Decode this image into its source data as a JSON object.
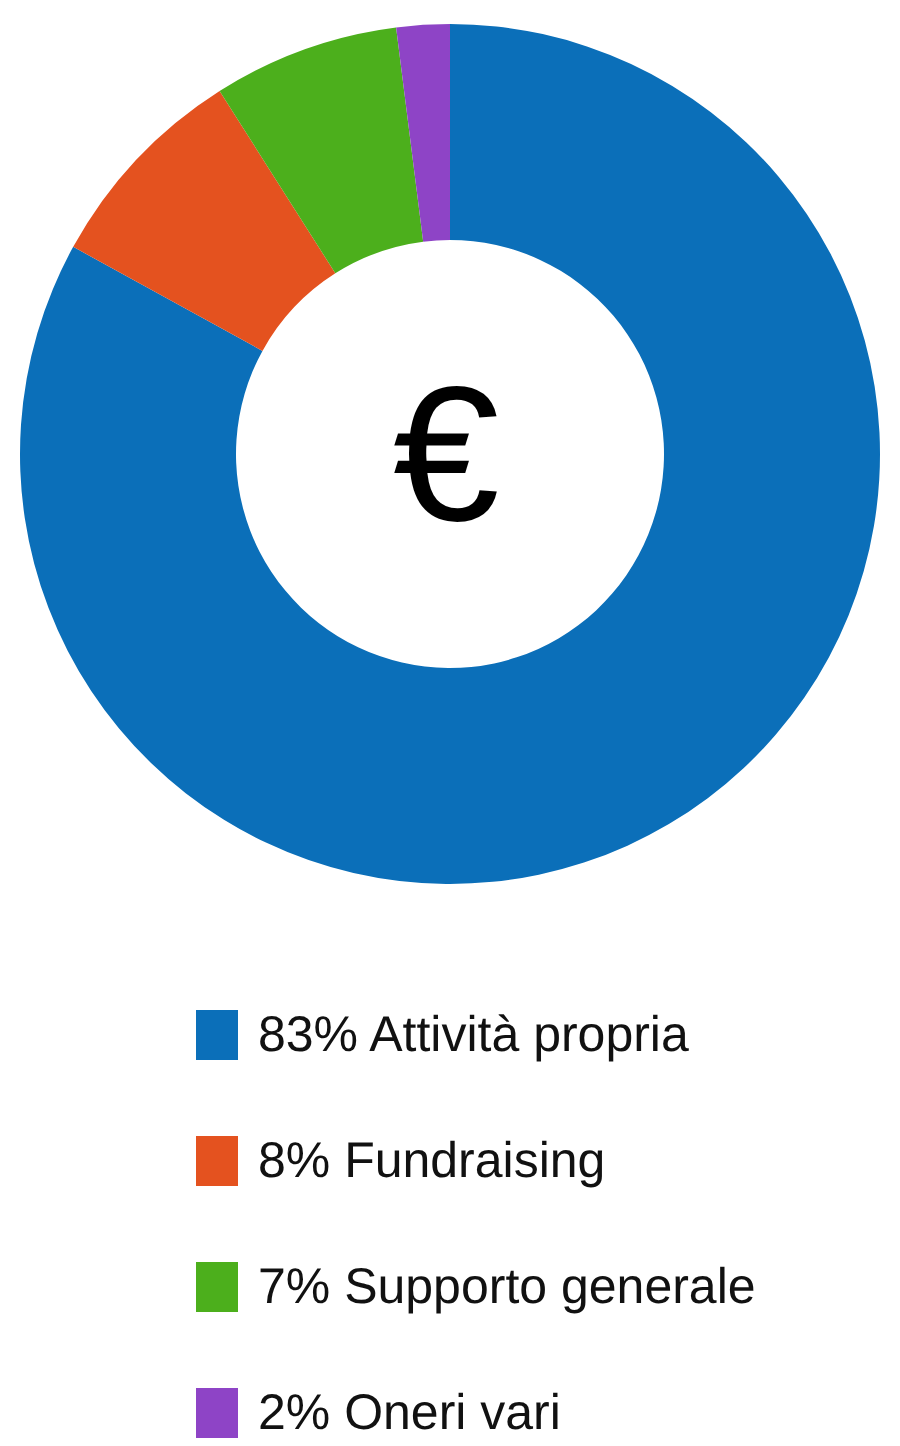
{
  "chart_data": {
    "type": "donut",
    "categories": [
      "83% Attività propria",
      "8% Fundraising",
      "7% Supporto generale",
      "2% Oneri vari"
    ],
    "values": [
      83,
      8,
      7,
      2
    ],
    "colors": [
      "#0b6fb9",
      "#e4521f",
      "#4caf1c",
      "#8e44c6"
    ],
    "legend": "bottom",
    "annotations": [
      "€"
    ]
  }
}
